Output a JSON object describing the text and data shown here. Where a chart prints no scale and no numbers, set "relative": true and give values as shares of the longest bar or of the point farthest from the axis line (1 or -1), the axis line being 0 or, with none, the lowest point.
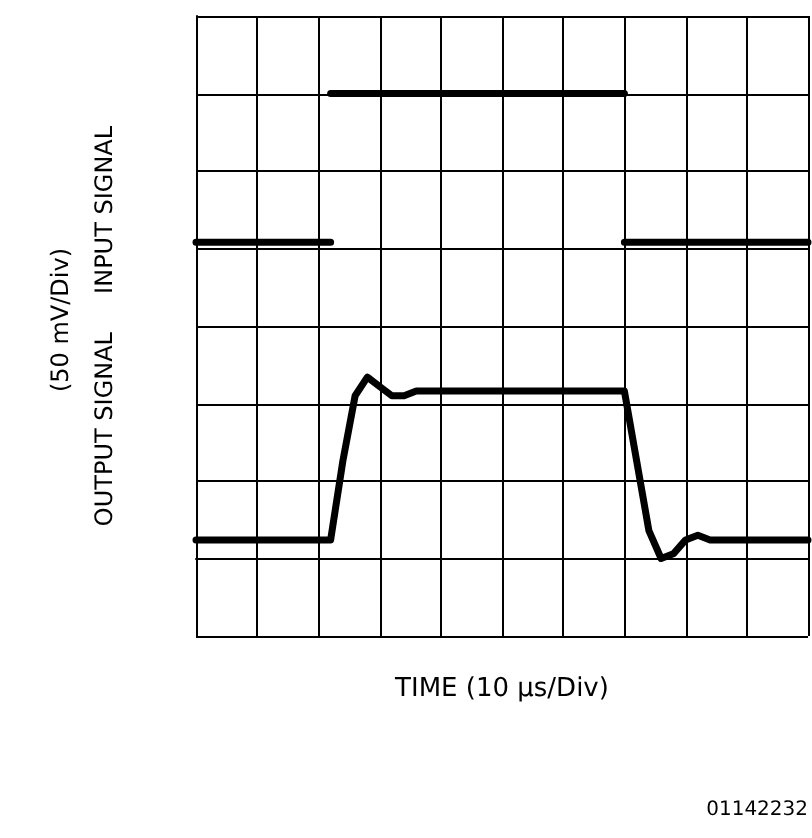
{
  "chart_data": {
    "type": "line",
    "relative": true,
    "xlabel": "TIME (10 μs/Div)",
    "ylabel": "OUTPUT SIGNAL     INPUT SIGNAL",
    "annotations": [
      "(50 mV/Div)",
      "01142232"
    ],
    "grid": true,
    "line_style": "solid",
    "categories": [
      null,
      null,
      null,
      null,
      null,
      null,
      null,
      null,
      null,
      null,
      null,
      null,
      null,
      null,
      null,
      null,
      null,
      null,
      null,
      null,
      null,
      null,
      null,
      null,
      null,
      null,
      null,
      null,
      null,
      null,
      null,
      null,
      null,
      null,
      null,
      null,
      null,
      null,
      null,
      null,
      null,
      null,
      null,
      null,
      null,
      null,
      null,
      null,
      null,
      null,
      null
    ],
    "series": [
      {
        "color": "#000000",
        "values": [
          0.68,
          0.68,
          0.68,
          0.68,
          0.68,
          0.68,
          0.68,
          0.68,
          0.68,
          0.68,
          0.68,
          0.68,
          null,
          null,
          null,
          null,
          null,
          null,
          null,
          null,
          null,
          null,
          null,
          null,
          null,
          null,
          null,
          null,
          null,
          null,
          null,
          null,
          null,
          null,
          null,
          0.68,
          0.68,
          0.68,
          0.68,
          0.68,
          0.68,
          0.68,
          0.68,
          0.68,
          0.68,
          0.68,
          0.68,
          0.68,
          0.68,
          0.68,
          0.68
        ]
      },
      {
        "color": "#000000",
        "values": [
          null,
          null,
          null,
          null,
          null,
          null,
          null,
          null,
          null,
          null,
          null,
          1,
          1,
          1,
          1,
          1,
          1,
          1,
          1,
          1,
          1,
          1,
          1,
          1,
          1,
          1,
          1,
          1,
          1,
          1,
          1,
          1,
          1,
          1,
          1,
          1,
          null,
          null,
          null,
          null,
          null,
          null,
          null,
          null,
          null,
          null,
          null,
          null,
          null,
          null,
          null
        ]
      },
      {
        "color": "#000000",
        "values": [
          0.04,
          0.04,
          0.04,
          0.04,
          0.04,
          0.04,
          0.04,
          0.04,
          0.04,
          0.04,
          0.04,
          0.04,
          0.21,
          0.35,
          0.39,
          0.37,
          0.35,
          0.35,
          0.36,
          0.36,
          0.36,
          0.36,
          0.36,
          0.36,
          0.36,
          0.36,
          0.36,
          0.36,
          0.36,
          0.36,
          0.36,
          0.36,
          0.36,
          0.36,
          0.36,
          0.36,
          0.21,
          0.06,
          0,
          0.01,
          0.04,
          0.05,
          0.04,
          0.04,
          0.04,
          0.04,
          0.04,
          0.04,
          0.04,
          0.04,
          0.04
        ]
      }
    ]
  }
}
